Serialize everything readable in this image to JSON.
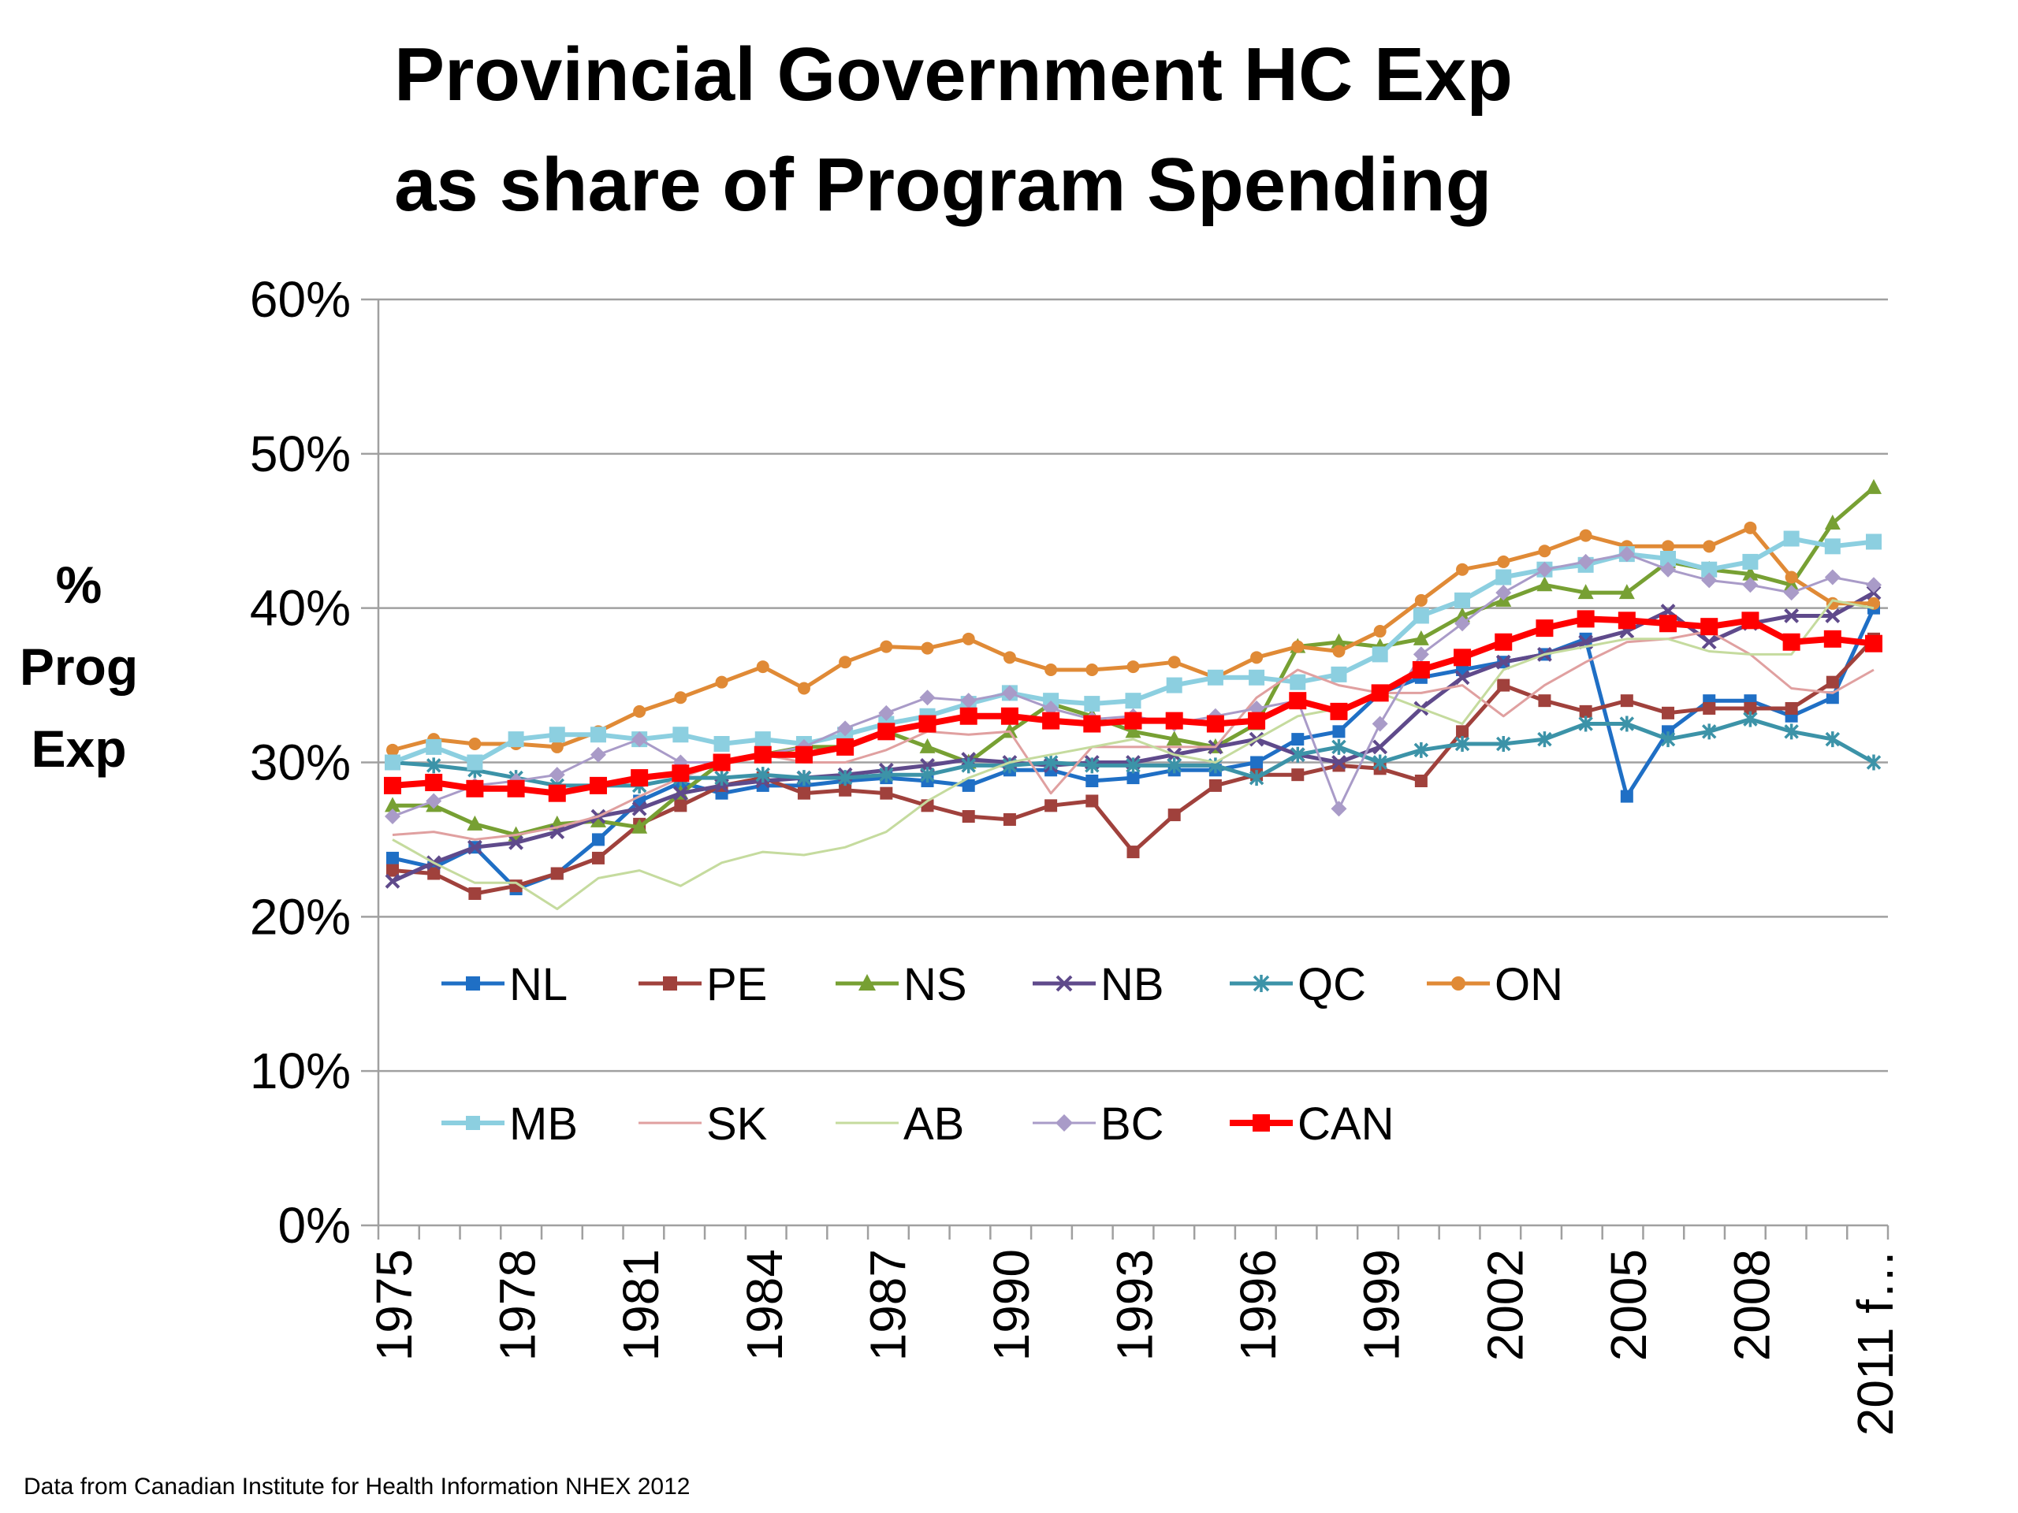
{
  "title_line1": "Provincial Government HC Exp",
  "title_line2": "as share of Program Spending",
  "ylabel_line1": "%",
  "ylabel_line2": "Prog",
  "ylabel_line3": "Exp",
  "source": "Data from Canadian Institute for Health Information NHEX 2012",
  "chart_data": {
    "type": "line",
    "title": "Provincial Government HC Exp as share of Program Spending",
    "ylabel": "% Prog Exp",
    "xlabel": "",
    "ylim": [
      0,
      0.6
    ],
    "yticks": [
      "0%",
      "10%",
      "20%",
      "30%",
      "40%",
      "50%",
      "60%"
    ],
    "x": [
      "1975",
      "1976",
      "1977",
      "1978",
      "1979",
      "1980",
      "1981",
      "1982",
      "1983",
      "1984",
      "1985",
      "1986",
      "1987",
      "1988",
      "1989",
      "1990",
      "1991",
      "1992",
      "1993",
      "1994",
      "1995",
      "1996",
      "1997",
      "1998",
      "1999",
      "2000",
      "2001",
      "2002",
      "2003",
      "2004",
      "2005",
      "2006",
      "2007",
      "2008",
      "2009",
      "2010",
      "2011 f…"
    ],
    "xtick_labels": [
      "1975",
      "1978",
      "1981",
      "1984",
      "1987",
      "1990",
      "1993",
      "1996",
      "1999",
      "2002",
      "2005",
      "2008",
      "2011 f…"
    ],
    "grid": true,
    "legend_placement": "inside-bottom",
    "series": [
      {
        "name": "NL",
        "color": "#1F6FC5",
        "marker": "square",
        "width": 5,
        "values": [
          0.238,
          0.232,
          0.245,
          0.218,
          0.228,
          0.25,
          0.275,
          0.287,
          0.28,
          0.285,
          0.285,
          0.288,
          0.29,
          0.288,
          0.285,
          0.295,
          0.295,
          0.288,
          0.29,
          0.295,
          0.295,
          0.3,
          0.315,
          0.32,
          0.345,
          0.355,
          0.36,
          0.365,
          0.37,
          0.38,
          0.278,
          0.32,
          0.34,
          0.34,
          0.33,
          0.342,
          0.4
        ]
      },
      {
        "name": "PE",
        "color": "#A0413C",
        "marker": "square",
        "width": 5,
        "values": [
          0.23,
          0.228,
          0.215,
          0.22,
          0.228,
          0.238,
          0.26,
          0.272,
          0.285,
          0.29,
          0.28,
          0.282,
          0.28,
          0.272,
          0.265,
          0.263,
          0.272,
          0.275,
          0.242,
          0.266,
          0.285,
          0.292,
          0.292,
          0.298,
          0.296,
          0.288,
          0.32,
          0.35,
          0.34,
          0.333,
          0.34,
          0.332,
          0.335,
          0.335,
          0.335,
          0.352,
          0.38
        ]
      },
      {
        "name": "NS",
        "color": "#77A033",
        "marker": "triangle",
        "width": 5,
        "values": [
          0.272,
          0.272,
          0.26,
          0.253,
          0.26,
          0.262,
          0.258,
          0.28,
          0.3,
          0.305,
          0.31,
          0.31,
          0.32,
          0.31,
          0.3,
          0.32,
          0.338,
          0.33,
          0.32,
          0.315,
          0.31,
          0.325,
          0.375,
          0.378,
          0.375,
          0.38,
          0.395,
          0.405,
          0.415,
          0.41,
          0.41,
          0.43,
          0.425,
          0.422,
          0.415,
          0.455,
          0.478
        ]
      },
      {
        "name": "NB",
        "color": "#5F4A8B",
        "marker": "x",
        "width": 5,
        "values": [
          0.223,
          0.235,
          0.245,
          0.248,
          0.255,
          0.265,
          0.27,
          0.28,
          0.285,
          0.288,
          0.29,
          0.292,
          0.295,
          0.298,
          0.302,
          0.3,
          0.298,
          0.3,
          0.3,
          0.305,
          0.31,
          0.315,
          0.305,
          0.3,
          0.31,
          0.335,
          0.355,
          0.365,
          0.37,
          0.378,
          0.385,
          0.398,
          0.378,
          0.39,
          0.395,
          0.395,
          0.41
        ]
      },
      {
        "name": "QC",
        "color": "#3C93A8",
        "marker": "asterisk",
        "width": 5,
        "values": [
          0.3,
          0.298,
          0.295,
          0.29,
          0.285,
          0.285,
          0.285,
          0.29,
          0.29,
          0.292,
          0.29,
          0.29,
          0.292,
          0.292,
          0.298,
          0.298,
          0.3,
          0.298,
          0.298,
          0.298,
          0.298,
          0.29,
          0.305,
          0.31,
          0.3,
          0.308,
          0.312,
          0.312,
          0.315,
          0.325,
          0.325,
          0.315,
          0.32,
          0.328,
          0.32,
          0.315,
          0.3
        ]
      },
      {
        "name": "ON",
        "color": "#E08A36",
        "marker": "circle",
        "width": 5,
        "values": [
          0.308,
          0.315,
          0.312,
          0.312,
          0.31,
          0.32,
          0.333,
          0.342,
          0.352,
          0.362,
          0.348,
          0.365,
          0.375,
          0.374,
          0.38,
          0.368,
          0.36,
          0.36,
          0.362,
          0.365,
          0.355,
          0.368,
          0.375,
          0.372,
          0.385,
          0.405,
          0.425,
          0.43,
          0.437,
          0.447,
          0.44,
          0.44,
          0.44,
          0.452,
          0.42,
          0.403,
          0.403
        ]
      },
      {
        "name": "MB",
        "color": "#8CCFE0",
        "marker": "square",
        "width": 6,
        "values": [
          0.3,
          0.31,
          0.3,
          0.315,
          0.318,
          0.318,
          0.315,
          0.318,
          0.312,
          0.315,
          0.312,
          0.318,
          0.325,
          0.33,
          0.338,
          0.345,
          0.34,
          0.338,
          0.34,
          0.35,
          0.355,
          0.355,
          0.352,
          0.357,
          0.37,
          0.395,
          0.405,
          0.42,
          0.425,
          0.428,
          0.435,
          0.432,
          0.425,
          0.43,
          0.445,
          0.44,
          0.443
        ]
      },
      {
        "name": "SK",
        "color": "#E0A0A0",
        "marker": "none",
        "width": 3,
        "values": [
          0.253,
          0.255,
          0.25,
          0.253,
          0.258,
          0.265,
          0.278,
          0.29,
          0.3,
          0.305,
          0.3,
          0.3,
          0.308,
          0.32,
          0.318,
          0.32,
          0.28,
          0.31,
          0.31,
          0.31,
          0.31,
          0.342,
          0.36,
          0.35,
          0.345,
          0.345,
          0.35,
          0.33,
          0.35,
          0.365,
          0.378,
          0.38,
          0.385,
          0.37,
          0.348,
          0.345,
          0.36
        ]
      },
      {
        "name": "AB",
        "color": "#C5DB9E",
        "marker": "none",
        "width": 3,
        "values": [
          0.25,
          0.235,
          0.222,
          0.222,
          0.205,
          0.225,
          0.23,
          0.22,
          0.235,
          0.242,
          0.24,
          0.245,
          0.255,
          0.275,
          0.29,
          0.3,
          0.305,
          0.31,
          0.315,
          0.305,
          0.3,
          0.315,
          0.33,
          0.335,
          0.345,
          0.335,
          0.325,
          0.36,
          0.37,
          0.375,
          0.38,
          0.38,
          0.372,
          0.37,
          0.37,
          0.405,
          0.4
        ]
      },
      {
        "name": "BC",
        "color": "#A99BC8",
        "marker": "diamond",
        "width": 3,
        "values": [
          0.265,
          0.275,
          0.285,
          0.288,
          0.292,
          0.305,
          0.315,
          0.3,
          0.3,
          0.305,
          0.31,
          0.322,
          0.332,
          0.342,
          0.34,
          0.345,
          0.335,
          0.328,
          0.33,
          0.325,
          0.33,
          0.335,
          0.34,
          0.27,
          0.325,
          0.37,
          0.39,
          0.41,
          0.425,
          0.43,
          0.435,
          0.425,
          0.418,
          0.415,
          0.41,
          0.42,
          0.415
        ]
      },
      {
        "name": "CAN",
        "color": "#FF0000",
        "marker": "square",
        "width": 8,
        "values": [
          0.285,
          0.287,
          0.283,
          0.283,
          0.28,
          0.285,
          0.29,
          0.293,
          0.3,
          0.305,
          0.305,
          0.31,
          0.32,
          0.325,
          0.33,
          0.33,
          0.327,
          0.325,
          0.327,
          0.327,
          0.325,
          0.327,
          0.34,
          0.333,
          0.345,
          0.36,
          0.368,
          0.378,
          0.387,
          0.393,
          0.392,
          0.39,
          0.388,
          0.392,
          0.378,
          0.38,
          0.377
        ]
      }
    ]
  }
}
